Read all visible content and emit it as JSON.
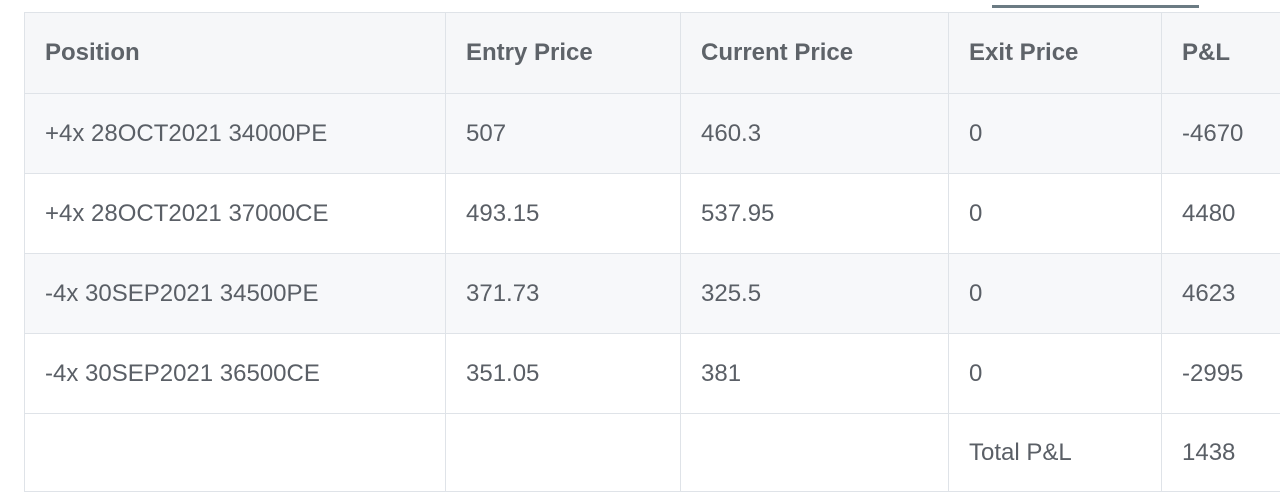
{
  "table": {
    "headers": [
      "Position",
      "Entry Price",
      "Current Price",
      "Exit Price",
      "P&L"
    ],
    "rows": [
      [
        "+4x 28OCT2021 34000PE",
        "507",
        "460.3",
        "0",
        "-4670"
      ],
      [
        "+4x 28OCT2021 37000CE",
        "493.15",
        "537.95",
        "0",
        "4480"
      ],
      [
        "-4x 30SEP2021 34500PE",
        "371.73",
        "325.5",
        "0",
        "4623"
      ],
      [
        "-4x 30SEP2021 36500CE",
        "351.05",
        "381",
        "0",
        "-2995"
      ]
    ],
    "total": {
      "label": "Total P&L",
      "value": "1438"
    }
  },
  "colors": {
    "header_bg": "#f6f7f9",
    "row_alt_bg": "#f7f8fa",
    "border": "#dfe3e8",
    "text": "#5a5f66",
    "tab_indicator": "#6b7b83"
  }
}
